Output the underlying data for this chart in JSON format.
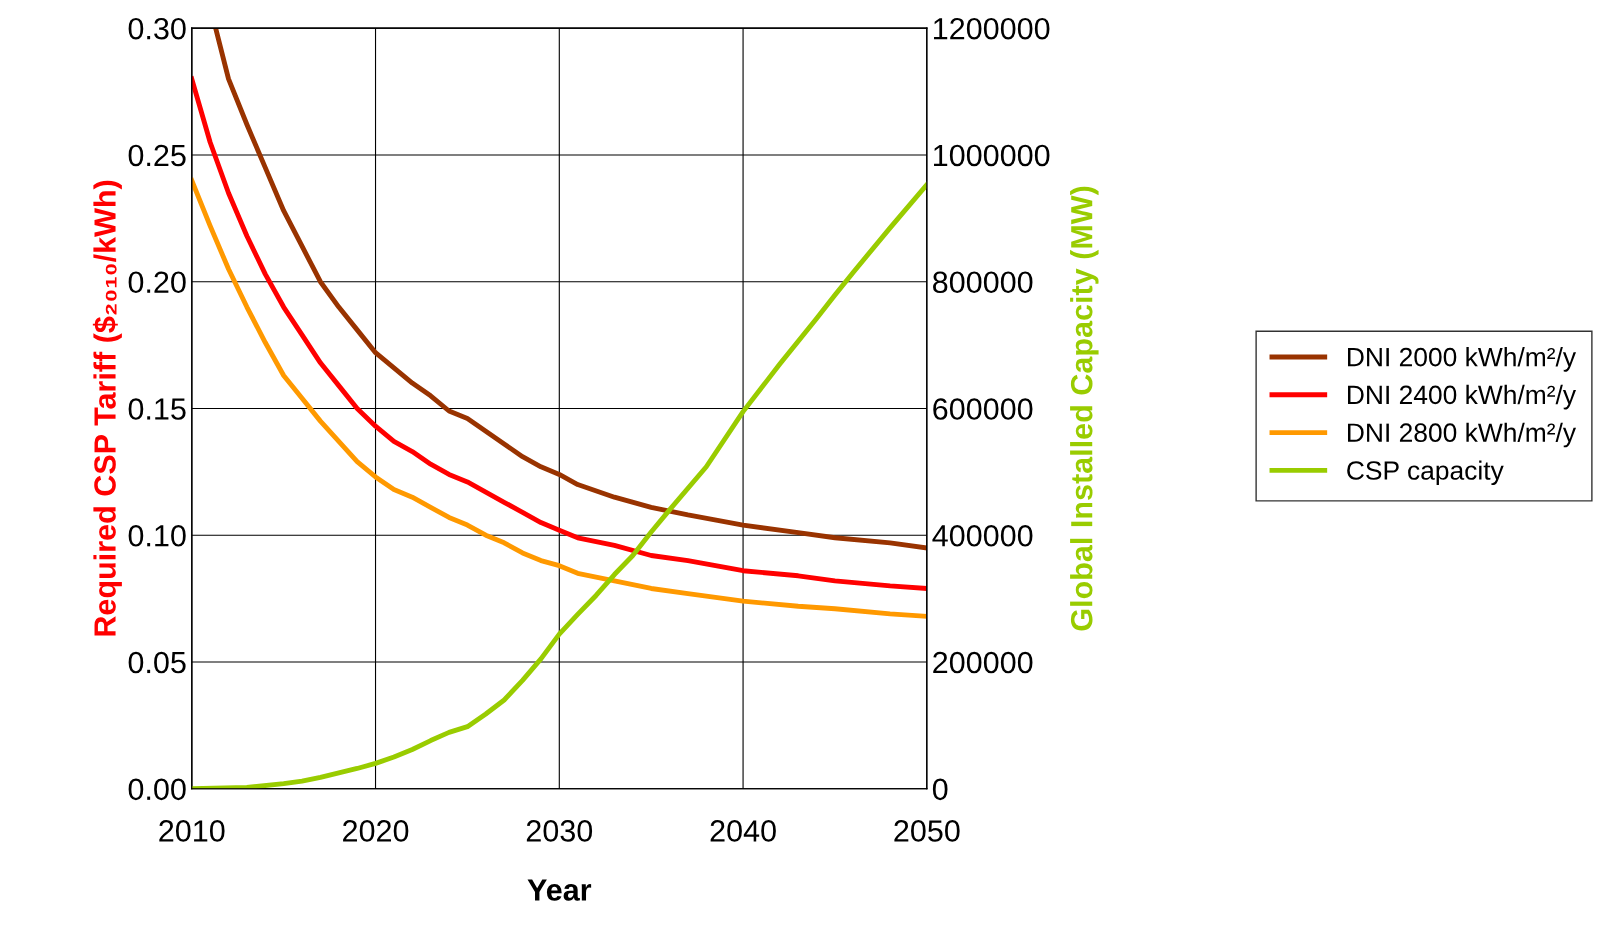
{
  "chart_data": {
    "type": "line",
    "xlabel": "Year",
    "ylabel": "Required CSP Tariff ($₂₀₁₀/kWh)",
    "y2label": "Global Installed Capacity (MW)",
    "xlim": [
      2010,
      2050
    ],
    "xticks": [
      2010,
      2020,
      2030,
      2040,
      2050
    ],
    "ylim": [
      0,
      0.3
    ],
    "yticks": [
      {
        "value": 0,
        "label": "0.00"
      },
      {
        "value": 0.05,
        "label": "0.05"
      },
      {
        "value": 0.1,
        "label": "0.10"
      },
      {
        "value": 0.15,
        "label": "0.15"
      },
      {
        "value": 0.2,
        "label": "0.20"
      },
      {
        "value": 0.25,
        "label": "0.25"
      },
      {
        "value": 0.3,
        "label": "0.30"
      }
    ],
    "y2lim": [
      0,
      1200000
    ],
    "y2ticks": [
      0,
      200000,
      400000,
      600000,
      800000,
      1000000,
      1200000
    ],
    "grid": true,
    "legend": "right",
    "marker": "none",
    "line_style": "solid",
    "series": [
      {
        "name": "DNI 2000 kWh/m²/y",
        "color": "#993300",
        "x": [
          2011.3,
          2012,
          2013,
          2014,
          2015,
          2016,
          2017,
          2018,
          2019,
          2020,
          2021,
          2022,
          2023,
          2024,
          2025,
          2026,
          2027,
          2028,
          2029,
          2030,
          2031,
          2033,
          2035,
          2037,
          2040,
          2043,
          2045,
          2048,
          2050
        ],
        "values": [
          0.3,
          0.28,
          0.262,
          0.245,
          0.228,
          0.214,
          0.2,
          0.19,
          0.181,
          0.172,
          0.166,
          0.16,
          0.155,
          0.149,
          0.146,
          0.141,
          0.136,
          0.131,
          0.127,
          0.124,
          0.12,
          0.115,
          0.111,
          0.108,
          0.104,
          0.101,
          0.099,
          0.097,
          0.095
        ]
      },
      {
        "name": "DNI 2400 kWh/m²/y",
        "color": "#ff0000",
        "x": [
          2010,
          2011,
          2012,
          2013,
          2014,
          2015,
          2016,
          2017,
          2018,
          2019,
          2020,
          2021,
          2022,
          2023,
          2024,
          2025,
          2026,
          2027,
          2028,
          2029,
          2030,
          2031,
          2033,
          2035,
          2037,
          2040,
          2043,
          2045,
          2048,
          2050
        ],
        "values": [
          0.28,
          0.255,
          0.235,
          0.218,
          0.203,
          0.19,
          0.179,
          0.168,
          0.159,
          0.15,
          0.143,
          0.137,
          0.133,
          0.128,
          0.124,
          0.121,
          0.117,
          0.113,
          0.109,
          0.105,
          0.102,
          0.099,
          0.096,
          0.092,
          0.09,
          0.086,
          0.084,
          0.082,
          0.08,
          0.079
        ]
      },
      {
        "name": "DNI 2800 kWh/m²/y",
        "color": "#ff9900",
        "x": [
          2010,
          2011,
          2012,
          2013,
          2014,
          2015,
          2016,
          2017,
          2018,
          2019,
          2020,
          2021,
          2022,
          2023,
          2024,
          2025,
          2026,
          2027,
          2028,
          2029,
          2030,
          2031,
          2033,
          2035,
          2037,
          2040,
          2043,
          2045,
          2048,
          2050
        ],
        "values": [
          0.24,
          0.222,
          0.205,
          0.19,
          0.176,
          0.163,
          0.154,
          0.145,
          0.137,
          0.129,
          0.123,
          0.118,
          0.115,
          0.111,
          0.107,
          0.104,
          0.1,
          0.097,
          0.093,
          0.09,
          0.088,
          0.085,
          0.082,
          0.079,
          0.077,
          0.074,
          0.072,
          0.071,
          0.069,
          0.068
        ]
      },
      {
        "name": "CSP capacity",
        "color": "#99cc00",
        "axis": "y2",
        "x": [
          2010,
          2013,
          2015,
          2016,
          2017,
          2018,
          2019,
          2020,
          2021,
          2022,
          2023,
          2024,
          2025,
          2026,
          2027,
          2028,
          2029,
          2030,
          2031,
          2032,
          2033,
          2034,
          2035,
          2036,
          2038,
          2040,
          2042,
          2044,
          2045,
          2046,
          2048,
          2050
        ],
        "values": [
          0,
          2000,
          8000,
          12000,
          18000,
          25000,
          32000,
          40000,
          50000,
          62000,
          76000,
          89000,
          98000,
          118000,
          140000,
          171000,
          205000,
          244000,
          275000,
          305000,
          338000,
          368000,
          405000,
          440000,
          508000,
          595000,
          670000,
          742000,
          779000,
          815000,
          885000,
          953000
        ]
      }
    ]
  }
}
